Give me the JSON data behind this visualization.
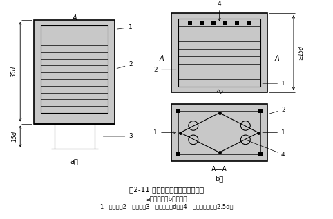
{
  "title_line1": "图2-11 浆锚法接桩节点构造示意图",
  "title_line2": "a）上节桩；b）下节桩",
  "title_line3": "1—桩箍筋；2—桩主筋；3—锚筋（直径d）；4—锚筋孔（孔径为2.5d）",
  "bg_color": "#ffffff",
  "line_color": "#000000",
  "gray_fill": "#c8c8c8",
  "lw_thick": 1.2,
  "lw_med": 0.8,
  "lw_thin": 0.5,
  "fig_w": 4.82,
  "fig_h": 3.18,
  "dpi": 100
}
